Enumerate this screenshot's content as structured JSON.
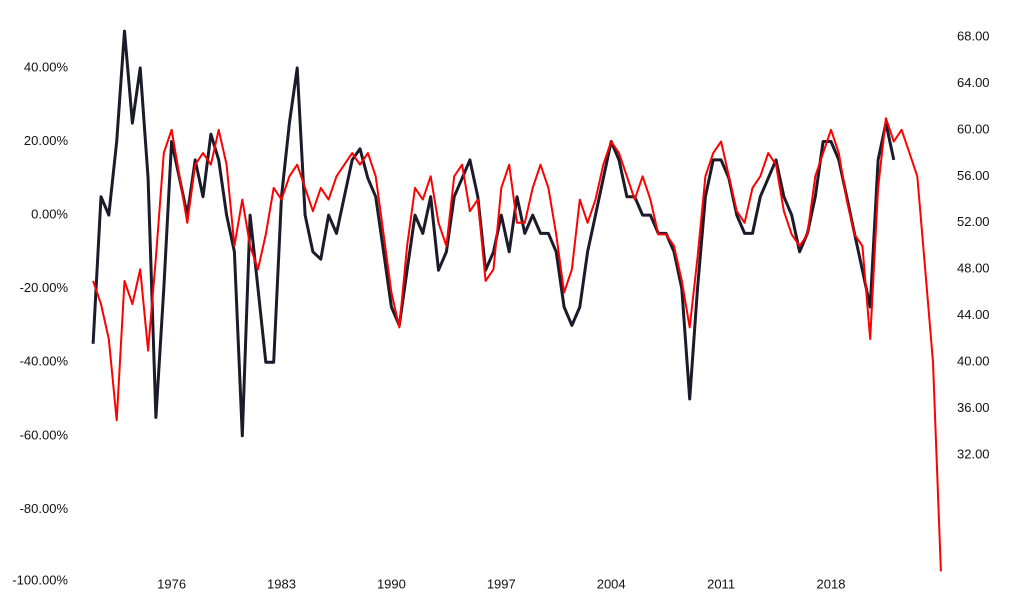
{
  "chart_data": {
    "type": "line",
    "x": [
      1971,
      1971.5,
      1972,
      1972.5,
      1973,
      1973.5,
      1974,
      1974.5,
      1975,
      1975.5,
      1976,
      1976.5,
      1977,
      1977.5,
      1978,
      1978.5,
      1979,
      1979.5,
      1980,
      1980.5,
      1981,
      1981.5,
      1982,
      1982.5,
      1983,
      1983.5,
      1984,
      1984.5,
      1985,
      1985.5,
      1986,
      1986.5,
      1987,
      1987.5,
      1988,
      1988.5,
      1989,
      1989.5,
      1990,
      1990.5,
      1991,
      1991.5,
      1992,
      1992.5,
      1993,
      1993.5,
      1994,
      1994.5,
      1995,
      1995.5,
      1996,
      1996.5,
      1997,
      1997.5,
      1998,
      1998.5,
      1999,
      1999.5,
      2000,
      2000.5,
      2001,
      2001.5,
      2002,
      2002.5,
      2003,
      2003.5,
      2004,
      2004.5,
      2005,
      2005.5,
      2006,
      2006.5,
      2007,
      2007.5,
      2008,
      2008.5,
      2009,
      2009.5,
      2010,
      2010.5,
      2011,
      2011.5,
      2012,
      2012.5,
      2013,
      2013.5,
      2014,
      2014.5,
      2015,
      2015.5,
      2016,
      2016.5,
      2017,
      2017.5,
      2018,
      2018.5,
      2019,
      2019.5,
      2020,
      2020.5,
      2021,
      2021.5,
      2022,
      2022.5,
      2023,
      2023.5,
      2024,
      2024.5,
      2025
    ],
    "series": [
      {
        "color": "#1b1b2b",
        "axis": "y",
        "values": [
          -35,
          5,
          0,
          20,
          50,
          25,
          40,
          10,
          -55,
          -20,
          20,
          10,
          0,
          15,
          5,
          22,
          15,
          0,
          -10,
          -60,
          0,
          -20,
          -40,
          -40,
          5,
          25,
          40,
          0,
          -10,
          -12,
          0,
          -5,
          5,
          15,
          18,
          10,
          5,
          -10,
          -25,
          -30,
          -15,
          0,
          -5,
          5,
          -15,
          -10,
          5,
          10,
          15,
          5,
          -15,
          -10,
          0,
          -10,
          5,
          -5,
          0,
          -5,
          -5,
          -10,
          -25,
          -30,
          -25,
          -10,
          0,
          10,
          20,
          15,
          5,
          5,
          0,
          0,
          -5,
          -5,
          -10,
          -20,
          -50,
          -20,
          5,
          15,
          15,
          10,
          0,
          -5,
          -5,
          5,
          10,
          15,
          5,
          0,
          -10,
          -5,
          5,
          20,
          20,
          15,
          5,
          -5,
          -15,
          -25,
          15,
          25,
          15,
          null,
          null,
          null,
          null,
          null,
          null
        ]
      },
      {
        "color": "#ff0000",
        "axis": "y2",
        "values": [
          47,
          45,
          42,
          35,
          47,
          45,
          48,
          41,
          49,
          58,
          60,
          56,
          52,
          57,
          58,
          57,
          60,
          57,
          50,
          54,
          50,
          48,
          51,
          55,
          54,
          56,
          57,
          55,
          53,
          55,
          54,
          56,
          57,
          58,
          57,
          58,
          56,
          51,
          46,
          43,
          50,
          55,
          54,
          56,
          52,
          50,
          56,
          57,
          53,
          54,
          47,
          48,
          55,
          57,
          52,
          52,
          55,
          57,
          55,
          51,
          46,
          48,
          54,
          52,
          54,
          57,
          59,
          58,
          56,
          54,
          56,
          54,
          51,
          51,
          50,
          47,
          43,
          49,
          56,
          58,
          59,
          56,
          53,
          52,
          55,
          56,
          58,
          57,
          53,
          51,
          50,
          51,
          56,
          58,
          60,
          58,
          54,
          51,
          50,
          42,
          55,
          61,
          59,
          60,
          58,
          56,
          48,
          40,
          22
        ]
      }
    ],
    "xlim": [
      1970.8,
      2025.2
    ],
    "xticks": [
      1976,
      1983,
      1990,
      1997,
      2004,
      2011,
      2018
    ],
    "ylim": [
      -100,
      56
    ],
    "yticks": [
      {
        "value": -100,
        "label": "-100.00%"
      },
      {
        "value": -80,
        "label": "-80.00%"
      },
      {
        "value": -60,
        "label": "-60.00%"
      },
      {
        "value": -40,
        "label": "-40.00%"
      },
      {
        "value": -20,
        "label": "-20.00%"
      },
      {
        "value": 0,
        "label": "0.00%"
      },
      {
        "value": 20,
        "label": "20.00%"
      },
      {
        "value": 40,
        "label": "40.00%"
      }
    ],
    "y2lim": [
      21,
      70.4
    ],
    "y2ticks": [
      {
        "value": 32,
        "label": "32.00"
      },
      {
        "value": 36,
        "label": "36.00"
      },
      {
        "value": 40,
        "label": "40.00"
      },
      {
        "value": 44,
        "label": "44.00"
      },
      {
        "value": 48,
        "label": "48.00"
      },
      {
        "value": 52,
        "label": "52.00"
      },
      {
        "value": 56,
        "label": "56.00"
      },
      {
        "value": 60,
        "label": "60.00"
      },
      {
        "value": 64,
        "label": "64.00"
      },
      {
        "value": 68,
        "label": "68.00"
      }
    ],
    "grid": false
  }
}
